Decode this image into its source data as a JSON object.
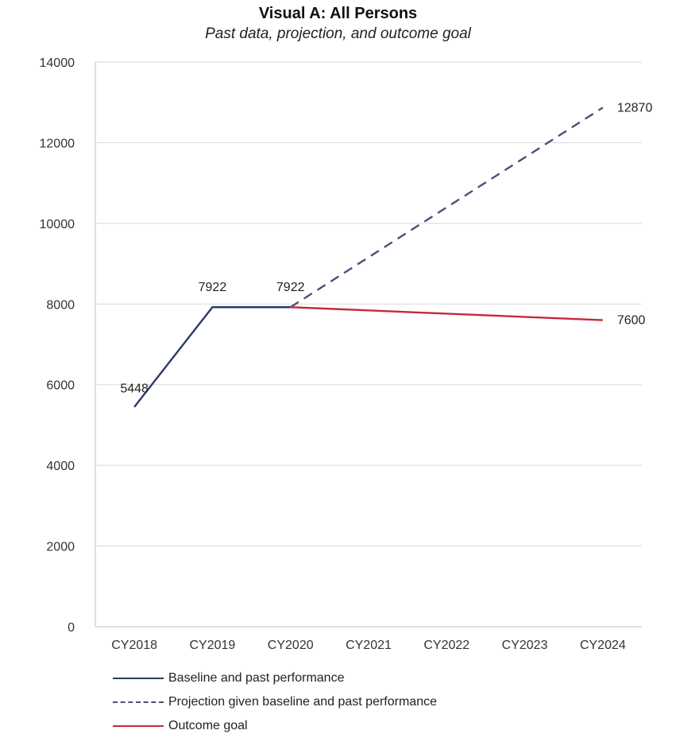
{
  "header": {
    "title": "Visual A: All Persons",
    "subtitle": "Past data, projection, and outcome goal"
  },
  "colors": {
    "baseline": "#2b3a67",
    "projection": "#4a5178",
    "goal": "#c8283c",
    "grid": "#d9d9d9"
  },
  "legend": [
    {
      "label": "Baseline and past performance",
      "series": 0
    },
    {
      "label": "Projection given baseline and past performance",
      "series": 1
    },
    {
      "label": "Outcome goal",
      "series": 2
    }
  ],
  "chart_data": {
    "type": "line",
    "title": "Visual A: All Persons",
    "subtitle": "Past data, projection, and outcome goal",
    "xlabel": "",
    "ylabel": "",
    "categories": [
      "CY2018",
      "CY2019",
      "CY2020",
      "CY2021",
      "CY2022",
      "CY2023",
      "CY2024"
    ],
    "ylim": [
      0,
      14000
    ],
    "yticks": [
      0,
      2000,
      4000,
      6000,
      8000,
      10000,
      12000,
      14000
    ],
    "grid": true,
    "legend_position": "bottom",
    "series": [
      {
        "name": "Baseline and past performance",
        "style": "solid",
        "points": [
          [
            "CY2018",
            5448
          ],
          [
            "CY2019",
            7922
          ],
          [
            "CY2020",
            7922
          ]
        ],
        "labels": [
          [
            "CY2018",
            "5448"
          ],
          [
            "CY2019",
            "7922"
          ],
          [
            "CY2020",
            "7922"
          ]
        ]
      },
      {
        "name": "Projection given baseline and past performance",
        "style": "dashed",
        "points": [
          [
            "CY2020",
            7922
          ],
          [
            "CY2024",
            12870
          ]
        ],
        "labels": [
          [
            "CY2024",
            "12870"
          ]
        ]
      },
      {
        "name": "Outcome goal",
        "style": "solid",
        "points": [
          [
            "CY2020",
            7922
          ],
          [
            "CY2024",
            7600
          ]
        ],
        "labels": [
          [
            "CY2024",
            "7600"
          ]
        ]
      }
    ]
  }
}
